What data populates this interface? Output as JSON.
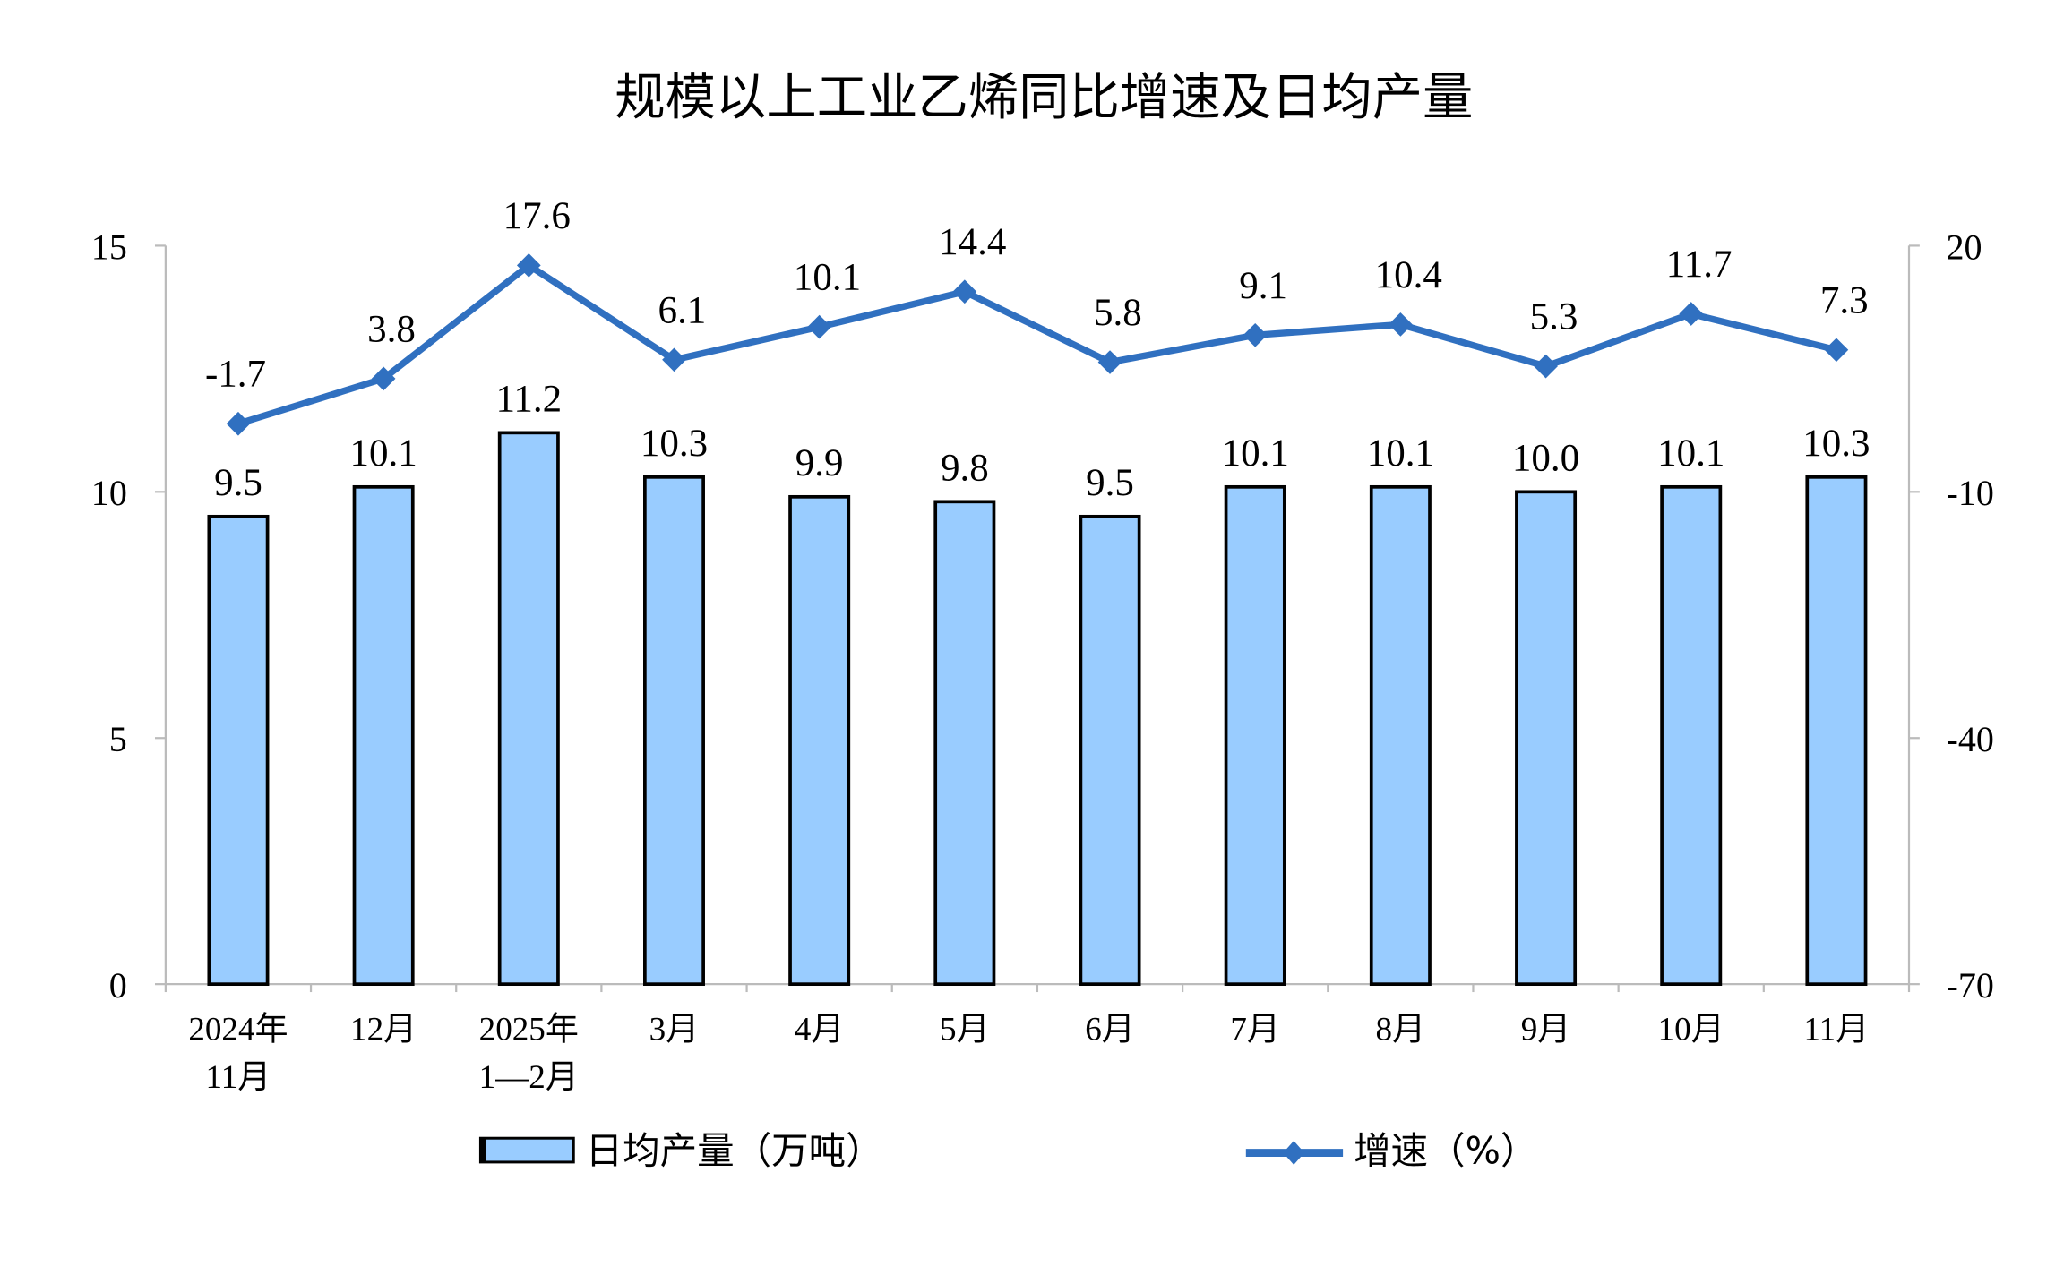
{
  "chart_data": {
    "type": "bar+line",
    "title": "规模以上工业乙烯同比增速及日均产量",
    "categories": [
      [
        "2024年",
        "11月"
      ],
      [
        "12月"
      ],
      [
        "2025年",
        "1—2月"
      ],
      [
        "3月"
      ],
      [
        "4月"
      ],
      [
        "5月"
      ],
      [
        "6月"
      ],
      [
        "7月"
      ],
      [
        "8月"
      ],
      [
        "9月"
      ],
      [
        "10月"
      ],
      [
        "11月"
      ]
    ],
    "series": [
      {
        "name": "日均产量（万吨）",
        "type": "bar",
        "axis": "left",
        "color": "#99CCFF",
        "values": [
          9.5,
          10.1,
          11.2,
          10.3,
          9.9,
          9.8,
          9.5,
          10.1,
          10.1,
          10.0,
          10.1,
          10.3
        ],
        "labels": [
          "9.5",
          "10.1",
          "11.2",
          "10.3",
          "9.9",
          "9.8",
          "9.5",
          "10.1",
          "10.1",
          "10.0",
          "10.1",
          "10.3"
        ]
      },
      {
        "name": "增速（%）",
        "type": "line",
        "axis": "right",
        "color": "#3070C0",
        "values": [
          -1.7,
          3.8,
          17.6,
          6.1,
          10.1,
          14.4,
          5.8,
          9.1,
          10.4,
          5.3,
          11.7,
          7.3
        ],
        "labels": [
          "-1.7",
          "3.8",
          "17.6",
          "6.1",
          "10.1",
          "14.4",
          "5.8",
          "9.1",
          "10.4",
          "5.3",
          "11.7",
          "7.3"
        ]
      }
    ],
    "left_axis": {
      "ylim": [
        0,
        15
      ],
      "ticks": [
        "0",
        "5",
        "10",
        "15"
      ]
    },
    "right_axis": {
      "ylim": [
        -70,
        20
      ],
      "ticks": [
        "-70",
        "-40",
        "-10",
        "20"
      ]
    },
    "grid": false,
    "legend": "bottom"
  }
}
